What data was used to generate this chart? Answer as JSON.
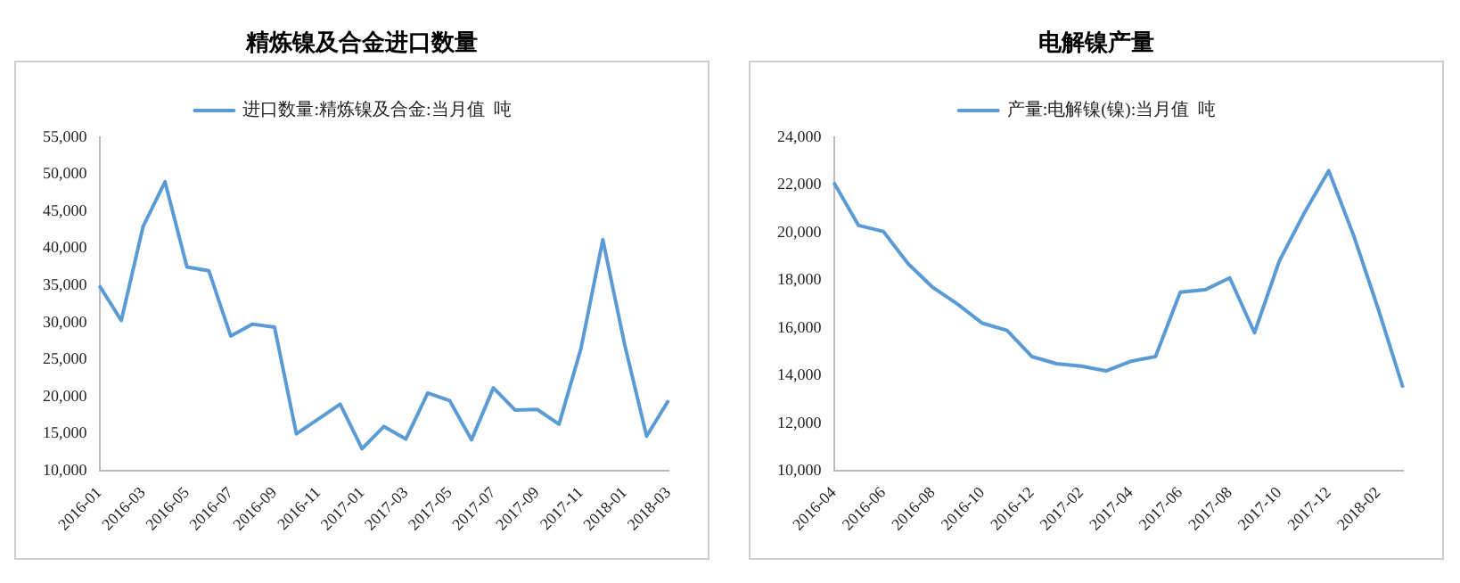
{
  "chart_data": [
    {
      "type": "line",
      "title": "精炼镍及合金进口数量",
      "categories": [
        "2016-01",
        null,
        "2016-03",
        null,
        "2016-05",
        null,
        "2016-07",
        null,
        "2016-09",
        null,
        "2016-11",
        null,
        "2017-01",
        null,
        "2017-03",
        null,
        "2017-05",
        null,
        "2017-07",
        null,
        "2017-09",
        null,
        "2017-11",
        null,
        "2018-01",
        null,
        "2018-03"
      ],
      "series": [
        {
          "name": "进口数量:精炼镍及合金:当月值  吨",
          "color": "#5b9bd5",
          "values": [
            35000,
            30300,
            43000,
            49000,
            37500,
            37000,
            28200,
            29800,
            29400,
            15000,
            17000,
            19000,
            13000,
            16000,
            14300,
            20500,
            19500,
            14200,
            21200,
            18200,
            18300,
            16300,
            26500,
            41200,
            27000,
            14700,
            19500
          ]
        }
      ],
      "ylim": [
        10000,
        55000
      ],
      "yticks": [
        {
          "value": 10000,
          "label": "10,000"
        },
        {
          "value": 15000,
          "label": "15,000"
        },
        {
          "value": 20000,
          "label": "20,000"
        },
        {
          "value": 25000,
          "label": "25,000"
        },
        {
          "value": 30000,
          "label": "30,000"
        },
        {
          "value": 35000,
          "label": "35,000"
        },
        {
          "value": 40000,
          "label": "40,000"
        },
        {
          "value": 45000,
          "label": "45,000"
        },
        {
          "value": 50000,
          "label": "50,000"
        },
        {
          "value": 55000,
          "label": "55,000"
        }
      ],
      "grid": false,
      "legend": "top",
      "marker": "none",
      "line_style": "solid"
    },
    {
      "type": "line",
      "title": "电解镍产量",
      "categories": [
        "2016-04",
        null,
        "2016-06",
        null,
        "2016-08",
        null,
        "2016-10",
        null,
        "2016-12",
        null,
        "2017-02",
        null,
        "2017-04",
        null,
        "2017-06",
        null,
        "2017-08",
        null,
        "2017-10",
        null,
        "2017-12",
        null,
        "2018-02",
        null
      ],
      "series": [
        {
          "name": "产量:电解镍(镍):当月值  吨",
          "color": "#5b9bd5",
          "values": [
            22100,
            20300,
            20050,
            18700,
            17700,
            17000,
            16200,
            15900,
            14800,
            14500,
            14400,
            14200,
            14600,
            14800,
            17500,
            17600,
            18100,
            15800,
            18800,
            20800,
            22600,
            19900,
            16800,
            13500
          ]
        }
      ],
      "ylim": [
        10000,
        24000
      ],
      "yticks": [
        {
          "value": 10000,
          "label": "10,000"
        },
        {
          "value": 12000,
          "label": "12,000"
        },
        {
          "value": 14000,
          "label": "14,000"
        },
        {
          "value": 16000,
          "label": "16,000"
        },
        {
          "value": 18000,
          "label": "18,000"
        },
        {
          "value": 20000,
          "label": "20,000"
        },
        {
          "value": 22000,
          "label": "22,000"
        },
        {
          "value": 24000,
          "label": "24,000"
        }
      ],
      "grid": false,
      "legend": "top",
      "marker": "none",
      "line_style": "solid"
    }
  ]
}
